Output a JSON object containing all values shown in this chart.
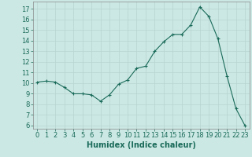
{
  "x": [
    0,
    1,
    2,
    3,
    4,
    5,
    6,
    7,
    8,
    9,
    10,
    11,
    12,
    13,
    14,
    15,
    16,
    17,
    18,
    19,
    20,
    21,
    22,
    23
  ],
  "y": [
    10.1,
    10.2,
    10.1,
    9.6,
    9.0,
    9.0,
    8.9,
    8.3,
    8.9,
    9.9,
    10.3,
    11.4,
    11.6,
    13.0,
    13.9,
    14.6,
    14.6,
    15.5,
    17.2,
    16.3,
    14.2,
    10.7,
    7.6,
    6.0
  ],
  "xlabel": "Humidex (Indice chaleur)",
  "xlim": [
    -0.5,
    23.5
  ],
  "ylim": [
    5.7,
    17.7
  ],
  "yticks": [
    6,
    7,
    8,
    9,
    10,
    11,
    12,
    13,
    14,
    15,
    16,
    17
  ],
  "xticks": [
    0,
    1,
    2,
    3,
    4,
    5,
    6,
    7,
    8,
    9,
    10,
    11,
    12,
    13,
    14,
    15,
    16,
    17,
    18,
    19,
    20,
    21,
    22,
    23
  ],
  "line_color": "#1a6b5a",
  "marker_color": "#1a6b5a",
  "bg_color": "#cce8e4",
  "grid_color": "#b8d4d0",
  "xlabel_fontsize": 7,
  "tick_fontsize": 6
}
